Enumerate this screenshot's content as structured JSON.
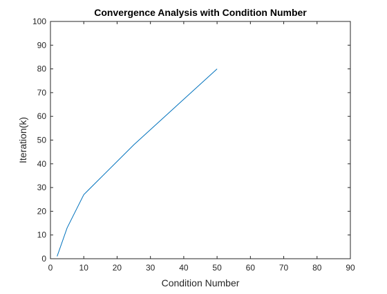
{
  "chart_data": {
    "type": "line",
    "title": "Convergence Analysis with Condition Number",
    "xlabel": "Condition Number",
    "ylabel": "Iteration(k)",
    "xlim": [
      0,
      90
    ],
    "ylim": [
      0,
      100
    ],
    "xticks": [
      0,
      10,
      20,
      30,
      40,
      50,
      60,
      70,
      80,
      90
    ],
    "yticks": [
      0,
      10,
      20,
      30,
      40,
      50,
      60,
      70,
      80,
      90,
      100
    ],
    "grid": false,
    "series": [
      {
        "x": [
          2,
          5,
          10,
          25,
          50
        ],
        "y": [
          1,
          13,
          27,
          48,
          80
        ],
        "color": "#0072BD"
      }
    ]
  }
}
